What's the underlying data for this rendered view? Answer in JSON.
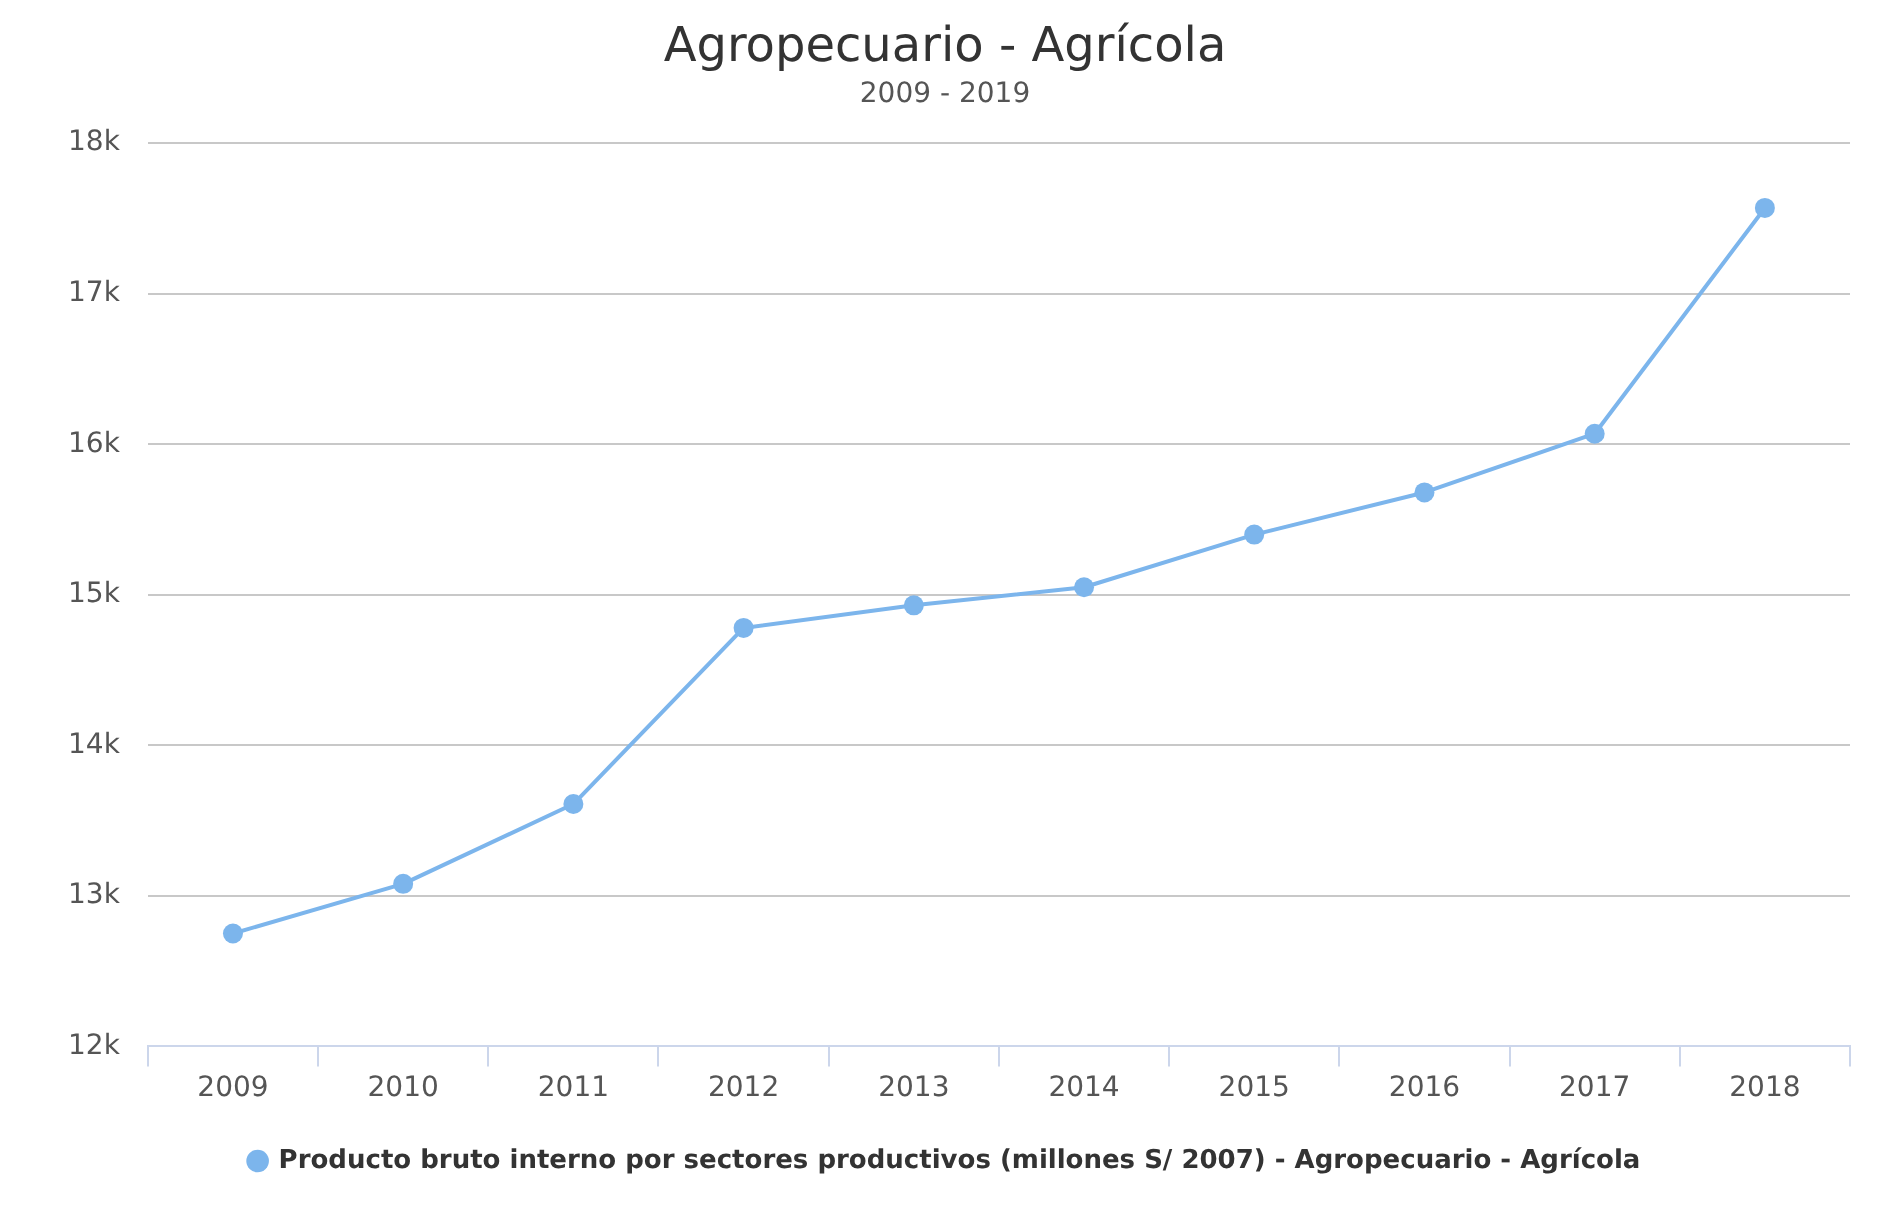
{
  "chart_data": {
    "type": "line",
    "title": "Agropecuario - Agrícola",
    "subtitle": "2009 - 2019",
    "categories": [
      "2009",
      "2010",
      "2011",
      "2012",
      "2013",
      "2014",
      "2015",
      "2016",
      "2017",
      "2018"
    ],
    "series": [
      {
        "name": "Producto bruto interno por sectores productivos (millones S/ 2007) - Agropecuario - Agrícola",
        "color": "#7cb5ec",
        "values": [
          12750,
          13080,
          13610,
          14780,
          14930,
          15050,
          15400,
          15680,
          16070,
          17570
        ]
      }
    ],
    "ylim": [
      12000,
      18000
    ],
    "yticks": [
      {
        "value": 12000,
        "label": "12k"
      },
      {
        "value": 13000,
        "label": "13k"
      },
      {
        "value": 14000,
        "label": "14k"
      },
      {
        "value": 15000,
        "label": "15k"
      },
      {
        "value": 16000,
        "label": "16k"
      },
      {
        "value": 17000,
        "label": "17k"
      },
      {
        "value": 18000,
        "label": "18k"
      }
    ],
    "grid": "y",
    "legend": "bottom",
    "marker": "circle",
    "line_style": "solid"
  }
}
